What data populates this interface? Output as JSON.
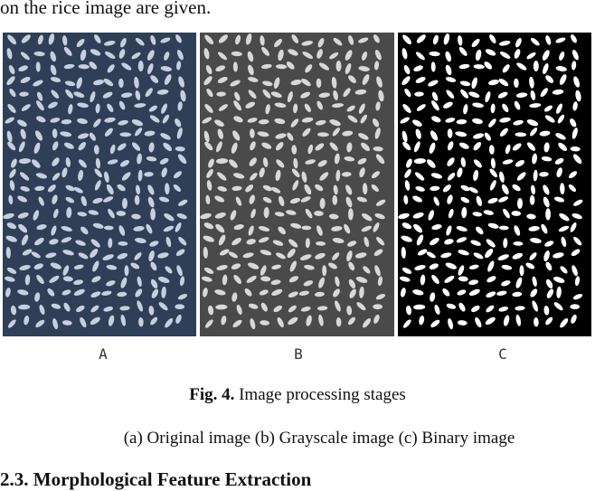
{
  "intro_text": "on the rice image are given.",
  "panels": [
    {
      "label": "A",
      "stage": "original",
      "background": "#2f3f57",
      "grain_color": "#c6d0dc"
    },
    {
      "label": "B",
      "stage": "grayscale",
      "background": "#4a4a4a",
      "grain_color": "#d8d8d8"
    },
    {
      "label": "C",
      "stage": "binary",
      "background": "#000000",
      "grain_color": "#ffffff"
    }
  ],
  "figure": {
    "number": "Fig. 4.",
    "title": " Image processing stages",
    "subcaption": "(a) Original image (b) Grayscale image (c) Binary image"
  },
  "section_heading": "2.3. Morphological Feature Extraction"
}
